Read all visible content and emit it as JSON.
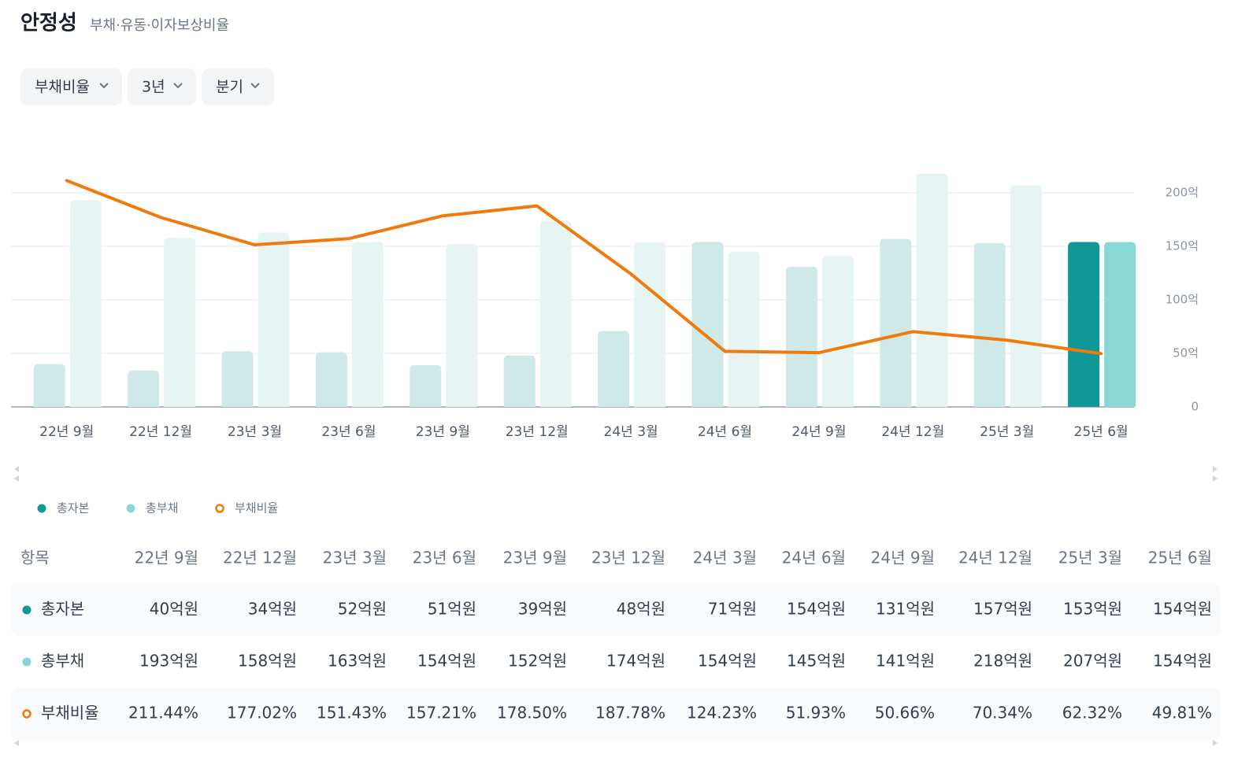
{
  "header": {
    "title": "안정성",
    "subtitle": "부채·유동·이자보상비율"
  },
  "filters": [
    "부채비율",
    "3년",
    "분기"
  ],
  "chart_data": {
    "type": "bar_line",
    "categories": [
      "22년 9월",
      "22년 12월",
      "23년 3월",
      "23년 6월",
      "23년 9월",
      "23년 12월",
      "24년 3월",
      "24년 6월",
      "24년 9월",
      "24년 12월",
      "25년 3월",
      "25년 6월"
    ],
    "series": [
      {
        "name": "총자본",
        "type": "bar",
        "color": "#109896",
        "inactive_color": "#cfe8e8",
        "values": [
          40,
          34,
          52,
          51,
          39,
          48,
          71,
          154,
          131,
          157,
          153,
          154
        ]
      },
      {
        "name": "총부채",
        "type": "bar",
        "color": "#88d8d6",
        "inactive_color": "#e6f5f4",
        "values": [
          193,
          158,
          163,
          154,
          152,
          174,
          154,
          145,
          141,
          218,
          207,
          154
        ]
      },
      {
        "name": "부채비율",
        "type": "line",
        "axis": "y2",
        "color": "#f07a0c",
        "values": [
          211.44,
          177.02,
          151.43,
          157.21,
          178.5,
          187.78,
          124.23,
          51.93,
          50.66,
          70.34,
          62.32,
          49.81
        ]
      }
    ],
    "active_index": 11,
    "ylim": [
      0,
      230
    ],
    "yticks": [
      0,
      {
        "value": 50,
        "label": "50억"
      },
      {
        "value": 100,
        "label": "100억"
      },
      {
        "value": 150,
        "label": "150억"
      },
      {
        "value": 200,
        "label": "200억"
      }
    ],
    "y2lim": [
      0,
      230
    ],
    "grid": true
  },
  "table": {
    "header": [
      "항목",
      "22년 9월",
      "22년 12월",
      "23년 3월",
      "23년 6월",
      "23년 9월",
      "23년 12월",
      "24년 3월",
      "24년 6월",
      "24년 9월",
      "24년 12월",
      "25년 3월",
      "25년 6월"
    ],
    "rows": [
      {
        "label": "총자본",
        "cells": [
          "40억원",
          "34억원",
          "52억원",
          "51억원",
          "39억원",
          "48억원",
          "71억원",
          "154억원",
          "131억원",
          "157억원",
          "153억원",
          "154억원"
        ]
      },
      {
        "label": "총부채",
        "cells": [
          "193억원",
          "158억원",
          "163억원",
          "154억원",
          "152억원",
          "174억원",
          "154억원",
          "145억원",
          "141억원",
          "218억원",
          "207억원",
          "154억원"
        ]
      },
      {
        "label": "부채비율",
        "cells": [
          "211.44%",
          "177.02%",
          "151.43%",
          "157.21%",
          "178.50%",
          "187.78%",
          "124.23%",
          "51.93%",
          "50.66%",
          "70.34%",
          "62.32%",
          "49.81%"
        ]
      }
    ]
  }
}
